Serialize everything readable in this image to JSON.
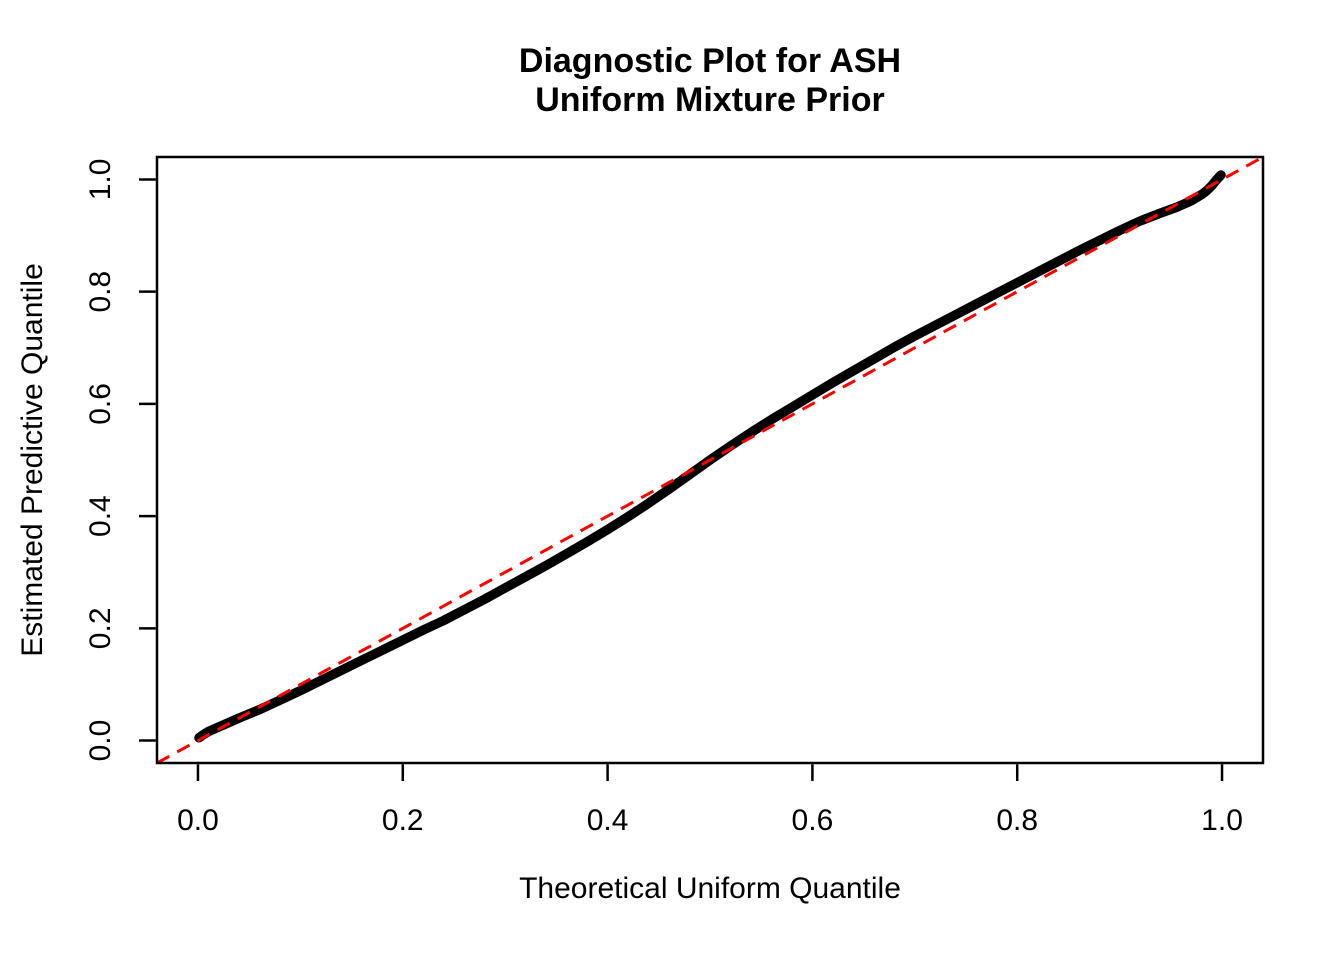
{
  "figure": {
    "title_line1": "Diagnostic Plot for ASH",
    "title_line2": "Uniform Mixture Prior",
    "x_axis_label": "Theoretical Uniform Quantile",
    "y_axis_label": "Estimated Predictive Quantile"
  },
  "chart_data": {
    "type": "scatter",
    "title": "Diagnostic Plot for ASH Uniform Mixture Prior",
    "xlabel": "Theoretical Uniform Quantile",
    "ylabel": "Estimated Predictive Quantile",
    "xlim": [
      0,
      1
    ],
    "ylim": [
      0,
      1
    ],
    "axis_expansion": 0.04,
    "grid": false,
    "legend": null,
    "x_ticks": [
      0,
      0.2,
      0.4,
      0.6,
      0.8,
      1.0
    ],
    "y_ticks": [
      0,
      0.2,
      0.4,
      0.6,
      0.8,
      1.0
    ],
    "x_tick_labels": [
      "0.0",
      "0.2",
      "0.4",
      "0.6",
      "0.8",
      "1.0"
    ],
    "y_tick_labels": [
      "0.0",
      "0.2",
      "0.4",
      "0.6",
      "0.8",
      "1.0"
    ],
    "colors": {
      "points": "#000000",
      "reference_line": "#FF0000",
      "axis": "#000000"
    },
    "series": [
      {
        "name": "estimated-vs-theoretical-predictive-quantiles",
        "marker": "point-band",
        "color": "#000000",
        "points": [
          [
            0.001,
            0.005
          ],
          [
            0.005,
            0.01
          ],
          [
            0.01,
            0.016
          ],
          [
            0.02,
            0.024
          ],
          [
            0.03,
            0.032
          ],
          [
            0.04,
            0.04
          ],
          [
            0.06,
            0.055
          ],
          [
            0.08,
            0.072
          ],
          [
            0.1,
            0.089
          ],
          [
            0.12,
            0.107
          ],
          [
            0.14,
            0.125
          ],
          [
            0.16,
            0.143
          ],
          [
            0.18,
            0.161
          ],
          [
            0.2,
            0.179
          ],
          [
            0.22,
            0.197
          ],
          [
            0.24,
            0.214
          ],
          [
            0.26,
            0.233
          ],
          [
            0.28,
            0.252
          ],
          [
            0.3,
            0.272
          ],
          [
            0.32,
            0.292
          ],
          [
            0.34,
            0.312
          ],
          [
            0.36,
            0.333
          ],
          [
            0.38,
            0.354
          ],
          [
            0.4,
            0.376
          ],
          [
            0.42,
            0.399
          ],
          [
            0.44,
            0.423
          ],
          [
            0.46,
            0.448
          ],
          [
            0.48,
            0.474
          ],
          [
            0.5,
            0.5
          ],
          [
            0.52,
            0.525
          ],
          [
            0.54,
            0.549
          ],
          [
            0.56,
            0.572
          ],
          [
            0.58,
            0.594
          ],
          [
            0.6,
            0.616
          ],
          [
            0.62,
            0.638
          ],
          [
            0.64,
            0.659
          ],
          [
            0.66,
            0.68
          ],
          [
            0.68,
            0.701
          ],
          [
            0.7,
            0.721
          ],
          [
            0.72,
            0.74
          ],
          [
            0.74,
            0.759
          ],
          [
            0.76,
            0.778
          ],
          [
            0.78,
            0.797
          ],
          [
            0.8,
            0.816
          ],
          [
            0.82,
            0.835
          ],
          [
            0.84,
            0.854
          ],
          [
            0.86,
            0.873
          ],
          [
            0.88,
            0.891
          ],
          [
            0.9,
            0.909
          ],
          [
            0.92,
            0.926
          ],
          [
            0.94,
            0.94
          ],
          [
            0.955,
            0.95
          ],
          [
            0.97,
            0.962
          ],
          [
            0.98,
            0.973
          ],
          [
            0.985,
            0.98
          ],
          [
            0.99,
            0.989
          ],
          [
            0.995,
            1.0
          ],
          [
            0.999,
            1.008
          ]
        ]
      }
    ],
    "reference_line": {
      "name": "identity y=x",
      "color": "#FF0000",
      "style": "dashed",
      "x": [
        -0.04,
        1.04
      ],
      "y": [
        -0.04,
        1.04
      ]
    }
  }
}
